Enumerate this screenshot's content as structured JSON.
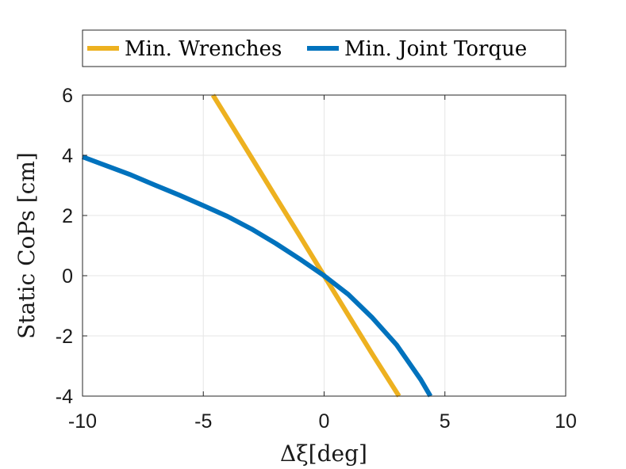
{
  "chart_data": {
    "type": "line",
    "xlabel": "Δξ[deg]",
    "ylabel": "Static CoPs [cm]",
    "xlim": [
      -10,
      10
    ],
    "ylim": [
      -4,
      6
    ],
    "xticks": [
      -10,
      -5,
      0,
      5,
      10
    ],
    "yticks": [
      -4,
      -2,
      0,
      2,
      4,
      6
    ],
    "xtick_labels": [
      "-10",
      "-5",
      "0",
      "5",
      "10"
    ],
    "ytick_labels": [
      "-4",
      "-2",
      "0",
      "2",
      "4",
      "6"
    ],
    "grid": true,
    "legend_position": "top-center",
    "series": [
      {
        "name": "Min. Wrenches",
        "color": "#EDB120",
        "x": [
          -4.6,
          -4.0,
          -3.0,
          -2.0,
          -1.0,
          0.0,
          1.0,
          2.0,
          3.1
        ],
        "y": [
          6.0,
          5.22,
          3.92,
          2.61,
          1.31,
          0.0,
          -1.31,
          -2.61,
          -4.0
        ]
      },
      {
        "name": "Min. Joint Torque",
        "color": "#0072BD",
        "x": [
          -10,
          -9,
          -8,
          -7,
          -6,
          -5,
          -4,
          -3,
          -2,
          -1,
          0,
          1,
          2,
          3,
          4,
          4.4
        ],
        "y": [
          3.95,
          3.65,
          3.35,
          3.01,
          2.68,
          2.33,
          1.97,
          1.55,
          1.07,
          0.55,
          0.0,
          -0.62,
          -1.4,
          -2.3,
          -3.45,
          -4.0
        ]
      }
    ]
  }
}
